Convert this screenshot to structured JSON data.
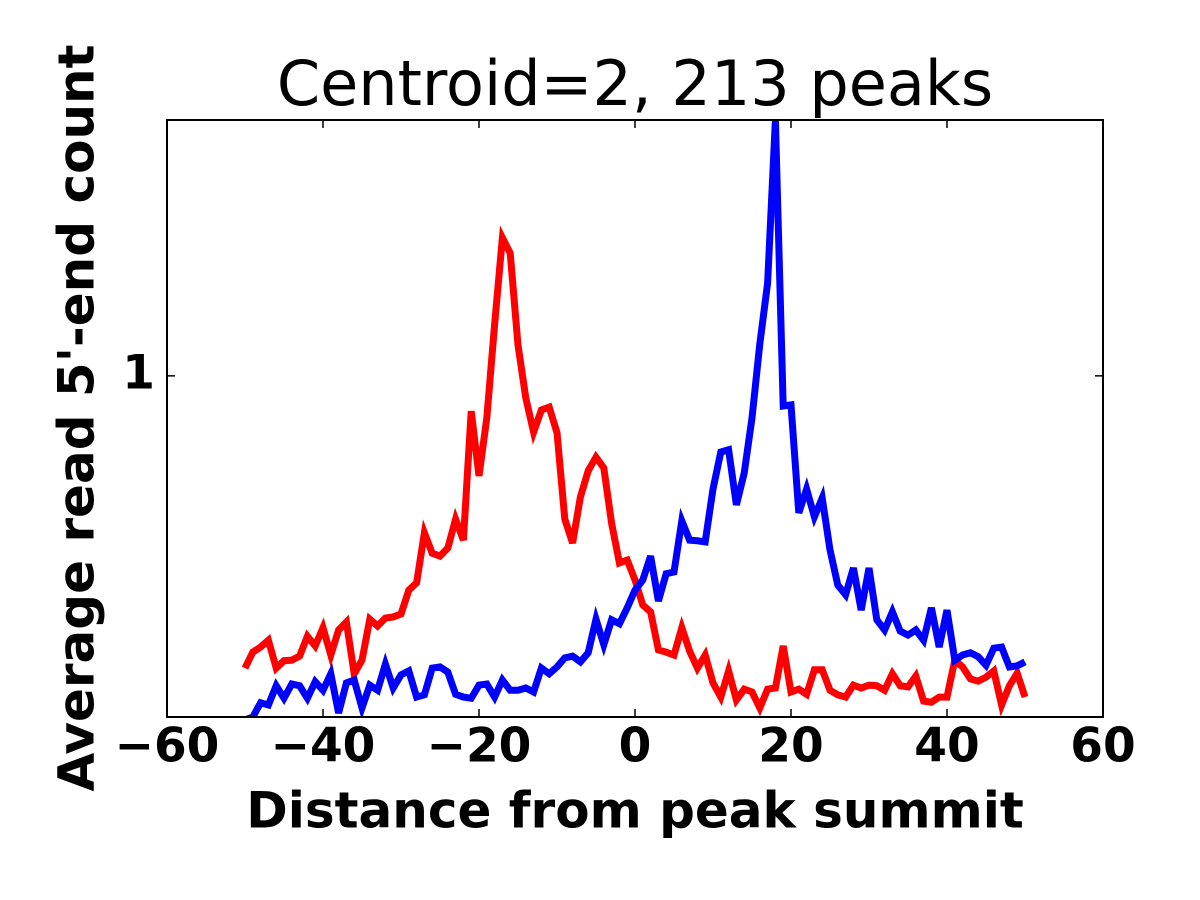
{
  "chart_data": {
    "type": "line",
    "title": "Centroid=2, 213 peaks",
    "x_label": "Distance from peak summit",
    "y_label": "Average read 5'-end count",
    "x": [
      -50,
      -49,
      -48,
      -47,
      -46,
      -45,
      -44,
      -43,
      -42,
      -41,
      -40,
      -39,
      -38,
      -37,
      -36,
      -35,
      -34,
      -33,
      -32,
      -31,
      -30,
      -29,
      -28,
      -27,
      -26,
      -25,
      -24,
      -23,
      -22,
      -21,
      -20,
      -19,
      -18,
      -17,
      -16,
      -15,
      -14,
      -13,
      -12,
      -11,
      -10,
      -9,
      -8,
      -7,
      -6,
      -5,
      -4,
      -3,
      -2,
      -1,
      0,
      1,
      2,
      3,
      4,
      5,
      6,
      7,
      8,
      9,
      10,
      11,
      12,
      13,
      14,
      15,
      16,
      17,
      18,
      19,
      20,
      21,
      22,
      23,
      24,
      25,
      26,
      27,
      28,
      29,
      30,
      31,
      32,
      33,
      34,
      35,
      36,
      37,
      38,
      39,
      40,
      41,
      42,
      43,
      44,
      45,
      46,
      47,
      48,
      49,
      50
    ],
    "series": [
      {
        "color": "#ff0000",
        "values": [
          0.486,
          0.514,
          0.523,
          0.535,
          0.486,
          0.499,
          0.5,
          0.507,
          0.542,
          0.525,
          0.557,
          0.509,
          0.553,
          0.567,
          0.476,
          0.5,
          0.572,
          0.56,
          0.574,
          0.576,
          0.581,
          0.623,
          0.636,
          0.724,
          0.688,
          0.683,
          0.697,
          0.748,
          0.711,
          0.938,
          0.824,
          0.926,
          1.09,
          1.243,
          1.216,
          1.054,
          0.961,
          0.901,
          0.94,
          0.945,
          0.9,
          0.748,
          0.706,
          0.787,
          0.833,
          0.857,
          0.838,
          0.741,
          0.671,
          0.676,
          0.641,
          0.597,
          0.585,
          0.518,
          0.514,
          0.509,
          0.557,
          0.516,
          0.486,
          0.509,
          0.46,
          0.435,
          0.481,
          0.43,
          0.449,
          0.444,
          0.416,
          0.449,
          0.451,
          0.525,
          0.444,
          0.449,
          0.44,
          0.483,
          0.483,
          0.447,
          0.439,
          0.435,
          0.456,
          0.451,
          0.456,
          0.455,
          0.447,
          0.476,
          0.455,
          0.453,
          0.472,
          0.428,
          0.426,
          0.435,
          0.435,
          0.5,
          0.488,
          0.467,
          0.463,
          0.47,
          0.481,
          0.421,
          0.455,
          0.477,
          0.435
        ]
      },
      {
        "color": "#0000ff",
        "values": [
          0.395,
          0.4,
          0.425,
          0.421,
          0.455,
          0.433,
          0.458,
          0.455,
          0.433,
          0.462,
          0.447,
          0.476,
          0.407,
          0.46,
          0.465,
          0.416,
          0.456,
          0.447,
          0.493,
          0.451,
          0.474,
          0.481,
          0.435,
          0.439,
          0.486,
          0.488,
          0.479,
          0.44,
          0.435,
          0.433,
          0.456,
          0.458,
          0.435,
          0.465,
          0.447,
          0.447,
          0.451,
          0.444,
          0.486,
          0.476,
          0.488,
          0.504,
          0.507,
          0.497,
          0.513,
          0.572,
          0.527,
          0.571,
          0.564,
          0.592,
          0.623,
          0.641,
          0.683,
          0.604,
          0.652,
          0.655,
          0.745,
          0.711,
          0.71,
          0.708,
          0.801,
          0.866,
          0.87,
          0.773,
          0.829,
          0.926,
          1.056,
          1.163,
          1.45,
          0.947,
          0.949,
          0.759,
          0.801,
          0.752,
          0.785,
          0.694,
          0.632,
          0.615,
          0.662,
          0.588,
          0.662,
          0.571,
          0.553,
          0.585,
          0.551,
          0.544,
          0.553,
          0.535,
          0.592,
          0.523,
          0.588,
          0.5,
          0.509,
          0.513,
          0.506,
          0.491,
          0.521,
          0.523,
          0.488,
          0.49,
          0.497
        ]
      }
    ],
    "xlim": [
      -60,
      60
    ],
    "xticks": [
      {
        "value": -60,
        "label": "−60"
      },
      {
        "value": -40,
        "label": "−40"
      },
      {
        "value": -20,
        "label": "−20"
      },
      0,
      20,
      40,
      60
    ],
    "ylim": [
      0.4,
      1.45
    ],
    "yticks": [
      1
    ],
    "grid": false
  }
}
